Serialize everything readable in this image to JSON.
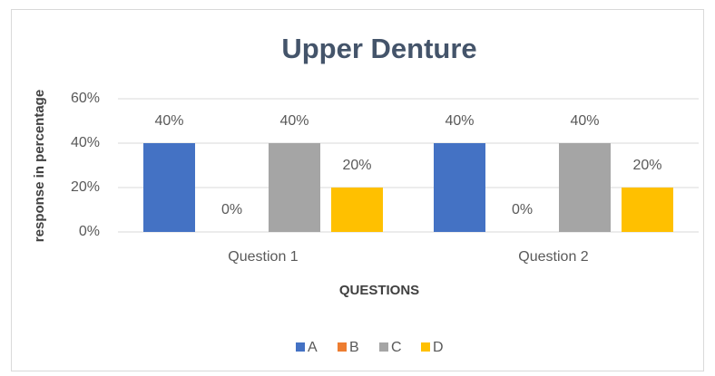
{
  "chart_data": {
    "type": "bar",
    "title": "Upper Denture",
    "x_label": "QUESTIONS",
    "y_label": "response in percentage",
    "categories": [
      "Question 1",
      "Question 2"
    ],
    "series": [
      {
        "name": "A",
        "color": "#4472c4",
        "values": [
          40,
          40
        ],
        "value_labels": [
          "40%",
          "40%"
        ]
      },
      {
        "name": "B",
        "color": "#ed7d31",
        "values": [
          0,
          0
        ],
        "value_labels": [
          "0%",
          "0%"
        ]
      },
      {
        "name": "C",
        "color": "#a5a5a5",
        "values": [
          40,
          40
        ],
        "value_labels": [
          "40%",
          "40%"
        ]
      },
      {
        "name": "D",
        "color": "#ffc000",
        "values": [
          20,
          20
        ],
        "value_labels": [
          "20%",
          "20%"
        ]
      }
    ],
    "ylim": [
      0,
      60
    ],
    "yticks": [
      {
        "value": 0,
        "label": "0%"
      },
      {
        "value": 20,
        "label": "20%"
      },
      {
        "value": 40,
        "label": "40%"
      },
      {
        "value": 60,
        "label": "60%"
      }
    ],
    "grid": true,
    "legend": "bottom"
  }
}
